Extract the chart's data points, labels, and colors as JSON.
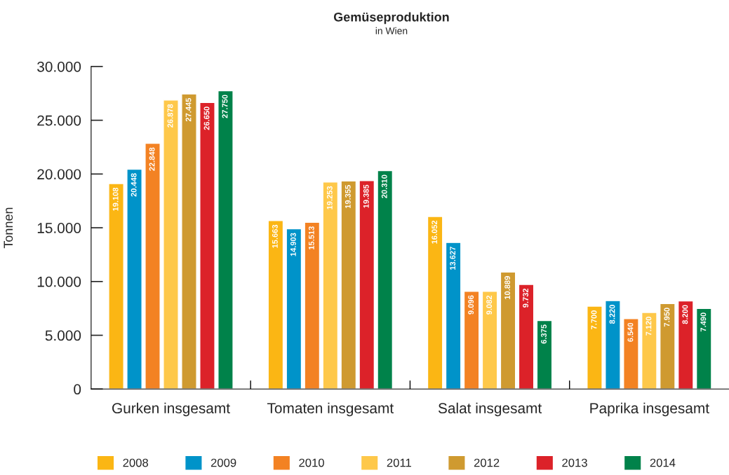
{
  "chart_data": {
    "type": "bar",
    "title": "Gemüseproduktion",
    "subtitle": "in Wien",
    "ylabel": "Tonnen",
    "categories": [
      "Gurken insgesamt",
      "Tomaten insgesamt",
      "Salat insgesamt",
      "Paprika insgesamt"
    ],
    "series": [
      {
        "name": "2008",
        "color": "#fbb614",
        "values": [
          19108,
          15663,
          16052,
          7700
        ],
        "value_labels": [
          "19.108",
          "15.663",
          "16.052",
          "7.700"
        ]
      },
      {
        "name": "2009",
        "color": "#0093c9",
        "values": [
          20448,
          14903,
          13627,
          8220
        ],
        "value_labels": [
          "20.448",
          "14.903",
          "13.627",
          "8.220"
        ]
      },
      {
        "name": "2010",
        "color": "#f38223",
        "values": [
          22848,
          15513,
          9096,
          6540
        ],
        "value_labels": [
          "22.848",
          "15.513",
          "9.096",
          "6.540"
        ]
      },
      {
        "name": "2011",
        "color": "#fec84a",
        "values": [
          26878,
          19253,
          9082,
          7120
        ],
        "value_labels": [
          "26.878",
          "19.253",
          "9.082",
          "7.120"
        ]
      },
      {
        "name": "2012",
        "color": "#cf9a30",
        "values": [
          27445,
          19355,
          10889,
          7950
        ],
        "value_labels": [
          "27.445",
          "19.355",
          "10.889",
          "7.950"
        ]
      },
      {
        "name": "2013",
        "color": "#dc2229",
        "values": [
          26650,
          19385,
          9732,
          8200
        ],
        "value_labels": [
          "26.650",
          "19.385",
          "9.732",
          "8.200"
        ]
      },
      {
        "name": "2014",
        "color": "#00824a",
        "values": [
          27750,
          20310,
          6375,
          7490
        ],
        "value_labels": [
          "27.750",
          "20.310",
          "6.375",
          "7.490"
        ]
      }
    ],
    "ylim": [
      0,
      30000
    ],
    "yticks": [
      {
        "value": 0,
        "label": "0"
      },
      {
        "value": 5000,
        "label": "5.000"
      },
      {
        "value": 10000,
        "label": "10.000"
      },
      {
        "value": 15000,
        "label": "15.000"
      },
      {
        "value": 20000,
        "label": "20.000"
      },
      {
        "value": 25000,
        "label": "25.000"
      },
      {
        "value": 30000,
        "label": "30.000"
      }
    ],
    "grid": false,
    "legend": "bottom"
  }
}
